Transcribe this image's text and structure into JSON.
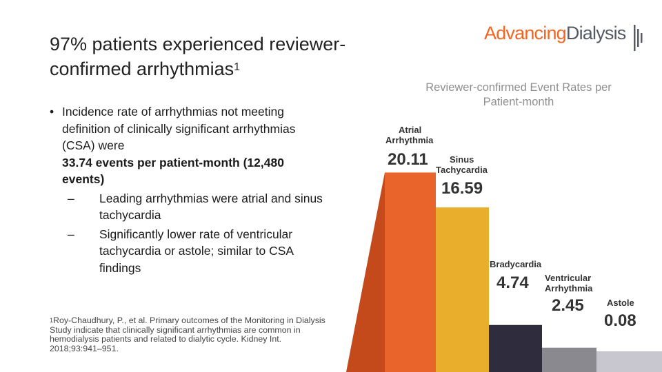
{
  "slide": {
    "title": "97% patients experienced reviewer-confirmed arrhythmias",
    "title_sup": "1",
    "bullet": {
      "text_plain": "Incidence rate of arrhythmias not meeting definition of clinically significant arrhythmias (CSA) were",
      "text_bold": "33.74 events per patient-month (12,480 events)"
    },
    "sub_bullets": [
      "Leading arrhythmias were atrial and sinus tachycardia",
      "Significantly lower rate of ventricular tachycardia or astole; similar to CSA findings"
    ],
    "footnote_marker": "1",
    "footnote": "Roy-Chaudhury, P., et al. Primary outcomes of the Monitoring in Dialysis Study indicate that clinically significant arrhythmias are common in hemodialysis patients and related to dialytic cycle. Kidney Int. 2018;93:941–951."
  },
  "logo": {
    "part1": "Advancing",
    "part2": "Dialysis"
  },
  "colors": {
    "accent": "#f26522",
    "logo_gray": "#555a63"
  },
  "chart_data": {
    "type": "bar",
    "title": "Reviewer-confirmed Event Rates per Patient-month",
    "categories": [
      "Atrial Arrhythmia",
      "Sinus Tachycardia",
      "Bradycardia",
      "Ventricular Arrhythmia",
      "Astole"
    ],
    "category_lines": [
      [
        "Atrial",
        "Arrhythmia"
      ],
      [
        "Sinus",
        "Tachycardia"
      ],
      [
        "Bradycardia"
      ],
      [
        "Ventricular",
        "Arrhythmia"
      ],
      [
        "Astole"
      ]
    ],
    "values": [
      20.11,
      16.59,
      4.74,
      2.45,
      0.08
    ],
    "value_labels": [
      "20.11",
      "16.59",
      "4.74",
      "2.45",
      "0.08"
    ],
    "colors": [
      "#e8642a",
      "#e8ae2c",
      "#2f2d3d",
      "#8a898f",
      "#c8c7cf"
    ],
    "side_colors": [
      "#c54a1b",
      "#c98f1e",
      "#1e1c28",
      "#6f6e74",
      "#aeadb6"
    ],
    "style": "3d stepped bars"
  }
}
